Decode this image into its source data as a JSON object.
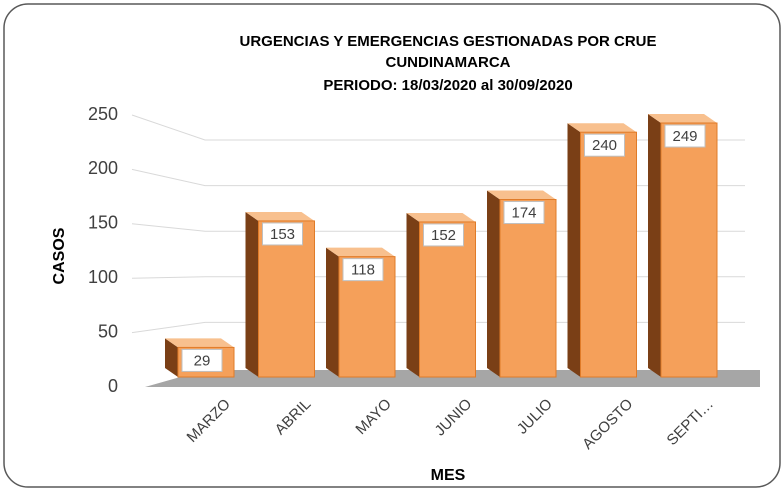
{
  "chart_data": {
    "type": "bar3d",
    "title": [
      "URGENCIAS Y EMERGENCIAS GESTIONADAS POR CRUE",
      "CUNDINAMARCA"
    ],
    "subtitle": "PERIODO: 18/03/2020 al 30/09/2020",
    "xlabel": "MES",
    "ylabel": "CASOS",
    "categories": [
      "MARZO",
      "ABRIL",
      "MAYO",
      "JUNIO",
      "JULIO",
      "AGOSTO",
      "SEPTI…"
    ],
    "values": [
      29,
      153,
      118,
      152,
      174,
      240,
      249
    ],
    "color": "#f5a05a",
    "side_color": "#7a3f16",
    "ylim": [
      0,
      250
    ],
    "yticks": [
      0,
      50,
      100,
      150,
      200,
      250
    ],
    "grid": true
  }
}
